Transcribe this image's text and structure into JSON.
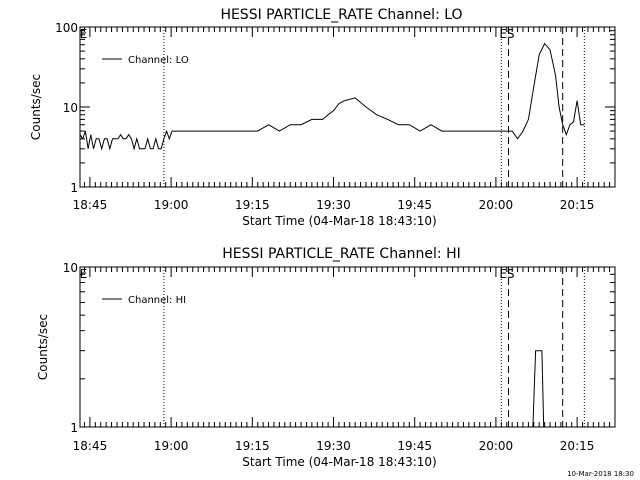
{
  "chart_data": [
    {
      "type": "line",
      "title": "HESSI PARTICLE_RATE Channel: LO",
      "xlabel": "Start Time (04-Mar-18 18:43:10)",
      "ylabel": "Counts/sec",
      "yscale": "log",
      "ylim": [
        1,
        100
      ],
      "ytick_values": [
        1,
        10,
        100
      ],
      "ytick_labels": [
        "1",
        "10",
        "100"
      ],
      "xlim": [
        "18:43:10",
        "20:22:00"
      ],
      "xtick_values": [
        "18:45",
        "19:00",
        "19:15",
        "19:30",
        "19:45",
        "20:00",
        "20:15"
      ],
      "xtick_labels": [
        "18:45",
        "19:00",
        "19:15",
        "19:30",
        "19:45",
        "20:00",
        "20:15"
      ],
      "legend": {
        "placement": "top-left",
        "entries": [
          "Channel: LO"
        ]
      },
      "annotations": [
        {
          "text": "E",
          "x": "18:43:30",
          "style": "label"
        },
        {
          "text": "ES",
          "x": "20:01:00",
          "style": "label"
        }
      ],
      "vlines": [
        {
          "x": "18:58:40",
          "style": "dotted"
        },
        {
          "x": "20:01:00",
          "style": "dotted"
        },
        {
          "x": "20:02:20",
          "style": "dashed"
        },
        {
          "x": "20:12:20",
          "style": "dashed"
        },
        {
          "x": "20:16:20",
          "style": "dotted"
        }
      ],
      "series": [
        {
          "name": "Channel: LO",
          "x": [
            "18:43:10",
            "18:43:40",
            "18:44:10",
            "18:44:40",
            "18:45:10",
            "18:45:40",
            "18:46:10",
            "18:46:40",
            "18:47:10",
            "18:47:40",
            "18:48:10",
            "18:48:40",
            "18:49:10",
            "18:49:40",
            "18:50:10",
            "18:50:40",
            "18:51:10",
            "18:51:40",
            "18:52:10",
            "18:52:40",
            "18:53:10",
            "18:53:40",
            "18:54:10",
            "18:54:40",
            "18:55:10",
            "18:55:40",
            "18:56:10",
            "18:56:40",
            "18:57:10",
            "18:57:40",
            "18:58:10",
            "18:58:40",
            "18:59:10",
            "18:59:40",
            "19:00:10",
            "19:02:00",
            "19:04:00",
            "19:06:00",
            "19:08:00",
            "19:10:00",
            "19:12:00",
            "19:14:00",
            "19:16:00",
            "19:18:00",
            "19:20:00",
            "19:22:00",
            "19:24:00",
            "19:26:00",
            "19:28:00",
            "19:29:00",
            "19:30:00",
            "19:31:00",
            "19:32:00",
            "19:34:00",
            "19:36:00",
            "19:38:00",
            "19:40:00",
            "19:42:00",
            "19:44:00",
            "19:46:00",
            "19:48:00",
            "19:50:00",
            "19:52:00",
            "19:54:00",
            "19:56:00",
            "19:58:00",
            "20:00:00",
            "20:01:00",
            "20:02:00",
            "20:03:00",
            "20:04:00",
            "20:05:00",
            "20:06:00",
            "20:07:00",
            "20:08:00",
            "20:09:00",
            "20:10:00",
            "20:11:00",
            "20:11:40",
            "20:12:20",
            "20:13:00",
            "20:13:40",
            "20:14:20",
            "20:15:00",
            "20:15:40",
            "20:16:20"
          ],
          "y": [
            4.5,
            4,
            5,
            3,
            4.5,
            3,
            4,
            4,
            3,
            4,
            4,
            3,
            4,
            4,
            4,
            4.5,
            4,
            4,
            4.5,
            4,
            3,
            4,
            3,
            3,
            3,
            4,
            3,
            3,
            4,
            3,
            3,
            4,
            5,
            4,
            5,
            5,
            5,
            5,
            5,
            5,
            5,
            5,
            5,
            6,
            5,
            6,
            6,
            7,
            7,
            8,
            9,
            11,
            12,
            13,
            10,
            8,
            7,
            6,
            6,
            5,
            6,
            5,
            5,
            5,
            5,
            5,
            5,
            5,
            5,
            5,
            4,
            5,
            7,
            18,
            45,
            62,
            52,
            25,
            10,
            6,
            4.5,
            6,
            6.5,
            12,
            6,
            6
          ]
        }
      ]
    },
    {
      "type": "line",
      "title": "HESSI PARTICLE_RATE Channel: HI",
      "xlabel": "Start Time (04-Mar-18 18:43:10)",
      "ylabel": "Counts/sec",
      "yscale": "log",
      "ylim": [
        1,
        10
      ],
      "ytick_values": [
        1,
        10
      ],
      "ytick_labels": [
        "1",
        "10"
      ],
      "xlim": [
        "18:43:10",
        "20:22:00"
      ],
      "xtick_values": [
        "18:45",
        "19:00",
        "19:15",
        "19:30",
        "19:45",
        "20:00",
        "20:15"
      ],
      "xtick_labels": [
        "18:45",
        "19:00",
        "19:15",
        "19:30",
        "19:45",
        "20:00",
        "20:15"
      ],
      "legend": {
        "placement": "top-left",
        "entries": [
          "Channel: HI"
        ]
      },
      "annotations": [
        {
          "text": "E",
          "x": "18:43:30",
          "style": "label"
        },
        {
          "text": "ES",
          "x": "20:01:00",
          "style": "label"
        }
      ],
      "vlines": [
        {
          "x": "18:58:40",
          "style": "dotted"
        },
        {
          "x": "20:01:00",
          "style": "dotted"
        },
        {
          "x": "20:02:20",
          "style": "dashed"
        },
        {
          "x": "20:12:20",
          "style": "dashed"
        },
        {
          "x": "20:16:20",
          "style": "dotted"
        }
      ],
      "series": [
        {
          "name": "Channel: HI",
          "x": [
            "20:06:50",
            "20:07:20",
            "20:08:30",
            "20:08:50"
          ],
          "y": [
            1,
            3,
            3,
            1
          ]
        }
      ]
    }
  ],
  "footer": {
    "timestamp": "10-Mar-2018 18:30"
  }
}
